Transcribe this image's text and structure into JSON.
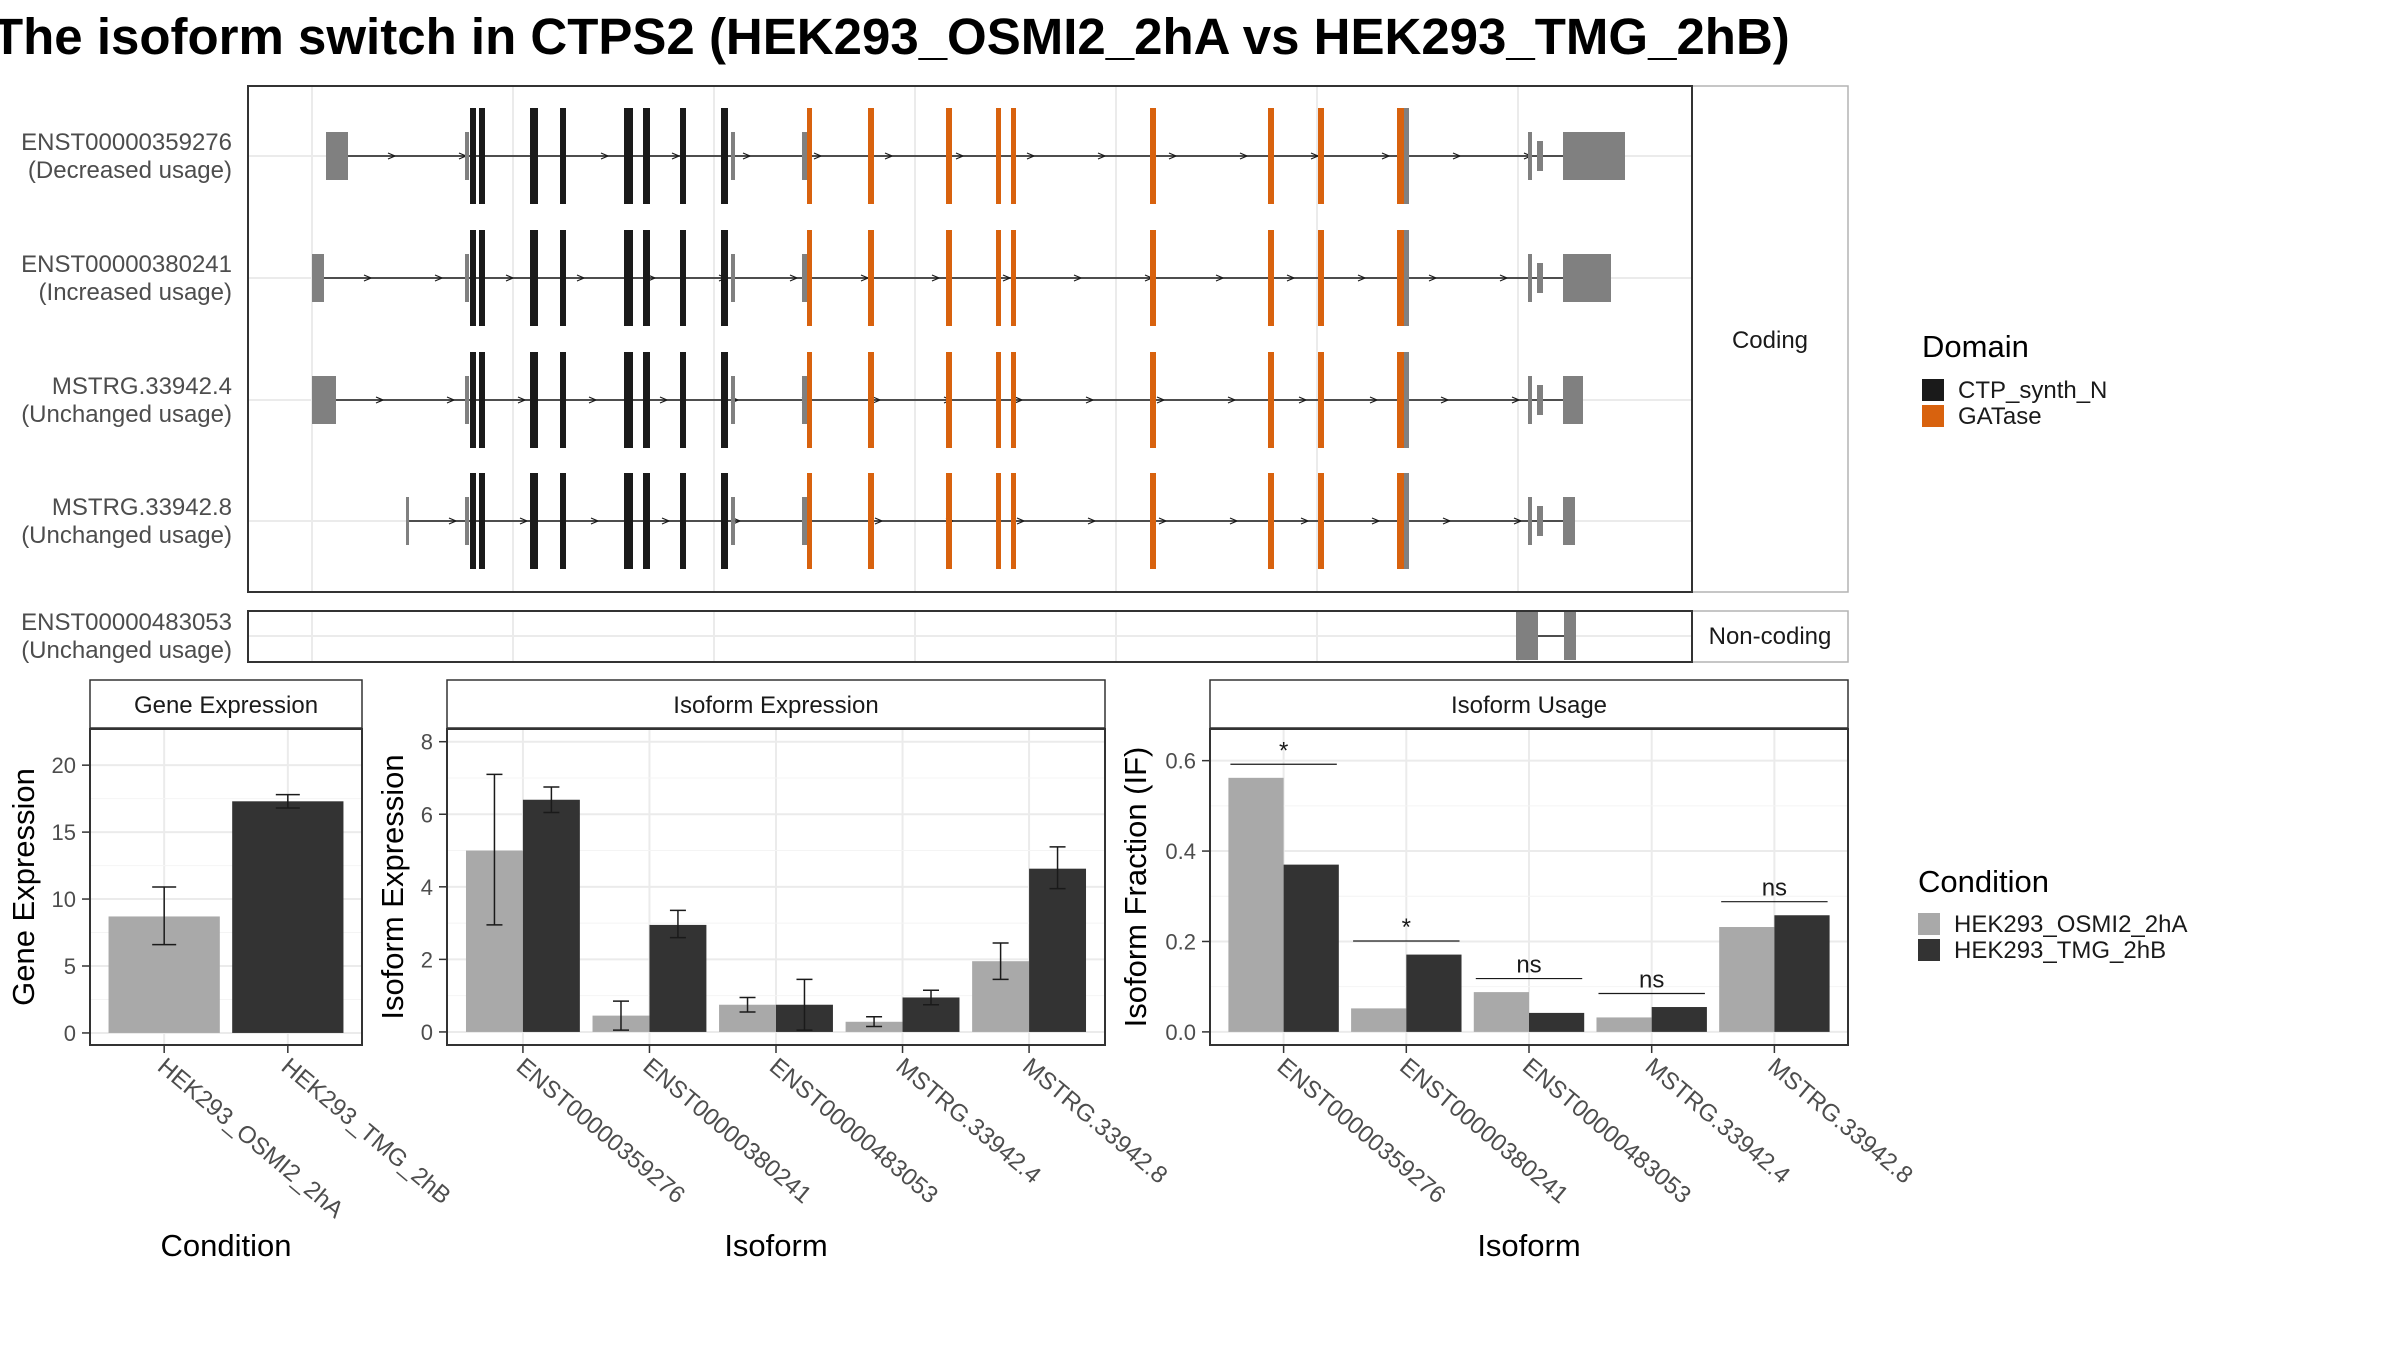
{
  "title": "The isoform switch in CTPS2 (HEK293_OSMI2_2hA vs HEK293_TMG_2hB)",
  "colors": {
    "utr": "#808080",
    "CTP_synth_N": "#1a1a1a",
    "GATase": "#d8620e",
    "cond_a": "#a9a9a9",
    "cond_b": "#333333",
    "grid": "#ebebeb",
    "strip_bg": "#ffffff"
  },
  "structure": {
    "coding_label": "Coding",
    "noncoding_label": "Non-coding",
    "legend_title": "Domain",
    "domain_names": [
      "CTP_synth_N",
      "GATase"
    ],
    "transcripts": [
      {
        "id": "ENST00000359276",
        "usage": "(Decreased usage)",
        "group": "coding"
      },
      {
        "id": "ENST00000380241",
        "usage": "(Increased usage)",
        "group": "coding"
      },
      {
        "id": "MSTRG.33942.4",
        "usage": "(Unchanged usage)",
        "group": "coding"
      },
      {
        "id": "MSTRG.33942.8",
        "usage": "(Unchanged usage)",
        "group": "coding"
      },
      {
        "id": "ENST00000483053",
        "usage": "(Unchanged usage)",
        "group": "noncoding"
      }
    ]
  },
  "chart_data": [
    {
      "type": "bar",
      "panel": "Gene Expression",
      "xlabel": "Condition",
      "ylabel": "Gene Expression",
      "categories": [
        "HEK293_OSMI2_2hA",
        "HEK293_TMG_2hB"
      ],
      "values": [
        8.7,
        17.3
      ],
      "error_low": [
        6.6,
        16.8
      ],
      "error_high": [
        10.9,
        17.8
      ],
      "ylim": [
        -0.9,
        22.7
      ],
      "yticks": [
        0,
        5,
        10,
        15,
        20
      ],
      "ytick_labels": [
        "0",
        "5",
        "10",
        "15",
        "20"
      ],
      "grid": true
    },
    {
      "type": "bar",
      "panel": "Isoform Expression",
      "xlabel": "Isoform",
      "ylabel": "Isoform Expression",
      "categories": [
        "ENST00000359276",
        "ENST00000380241",
        "ENST00000483053",
        "MSTRG.33942.4",
        "MSTRG.33942.8"
      ],
      "series": [
        {
          "name": "HEK293_OSMI2_2hA",
          "values": [
            5.0,
            0.45,
            0.75,
            0.28,
            1.95
          ],
          "error_low": [
            2.95,
            0.05,
            0.55,
            0.15,
            1.45
          ],
          "error_high": [
            7.1,
            0.85,
            0.95,
            0.42,
            2.45
          ]
        },
        {
          "name": "HEK293_TMG_2hB",
          "values": [
            6.4,
            2.95,
            0.75,
            0.95,
            4.5
          ],
          "error_low": [
            6.05,
            2.6,
            0.05,
            0.75,
            3.95
          ],
          "error_high": [
            6.75,
            3.35,
            1.45,
            1.15,
            5.1
          ]
        }
      ],
      "ylim": [
        -0.36,
        8.35
      ],
      "yticks": [
        0,
        2,
        4,
        6,
        8
      ],
      "ytick_labels": [
        "0",
        "2",
        "4",
        "6",
        "8"
      ],
      "grid": true
    },
    {
      "type": "bar",
      "panel": "Isoform Usage",
      "xlabel": "Isoform",
      "ylabel": "Isoform Fraction (IF)",
      "categories": [
        "ENST00000359276",
        "ENST00000380241",
        "ENST00000483053",
        "MSTRG.33942.4",
        "MSTRG.33942.8"
      ],
      "series": [
        {
          "name": "HEK293_OSMI2_2hA",
          "values": [
            0.562,
            0.052,
            0.088,
            0.032,
            0.232
          ]
        },
        {
          "name": "HEK293_TMG_2hB",
          "values": [
            0.37,
            0.171,
            0.042,
            0.055,
            0.258
          ]
        }
      ],
      "significance": [
        "*",
        "*",
        "ns",
        "ns",
        "ns"
      ],
      "ylim": [
        -0.029,
        0.67
      ],
      "yticks": [
        0.0,
        0.2,
        0.4,
        0.6
      ],
      "ytick_labels": [
        "0.0",
        "0.2",
        "0.4",
        "0.6"
      ],
      "grid": true
    }
  ],
  "condition_legend": {
    "title": "Condition",
    "names": [
      "HEK293_OSMI2_2hA",
      "HEK293_TMG_2hB"
    ]
  }
}
